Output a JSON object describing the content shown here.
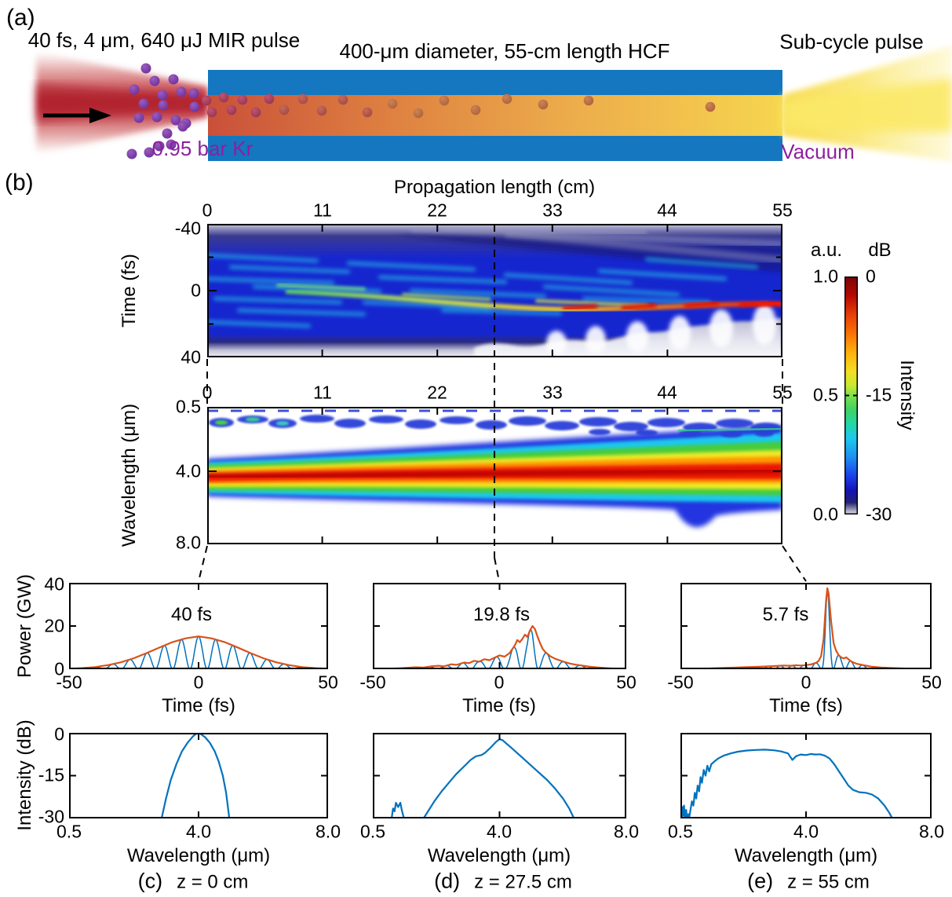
{
  "panel_a": {
    "label": "(a)",
    "pulse_label": "40 fs, 4 μm, 640 μJ MIR pulse",
    "fiber_label": "400-μm diameter, 55-cm length HCF",
    "output_label": "Sub-cycle pulse",
    "gas_label": "0.95 bar Kr",
    "vacuum_label": "Vacuum"
  },
  "panel_b": {
    "label": "(b)",
    "xaxis_title": "Propagation length (cm)",
    "xticks": [
      "0",
      "11",
      "22",
      "33",
      "44",
      "55"
    ],
    "time_map": {
      "ylabel": "Time (fs)",
      "yticks": [
        "-40",
        "0",
        "40"
      ]
    },
    "wavelength_map": {
      "ylabel": "Wavelength (μm)",
      "yticks": [
        "0.5",
        "4.0",
        "8.0"
      ]
    },
    "colorbar": {
      "left_unit": "a.u.",
      "right_unit": "dB",
      "left_ticks": [
        "1.0",
        "0.5",
        "0.0"
      ],
      "right_ticks": [
        "0",
        "-15",
        "-30"
      ],
      "label": "Intensity"
    }
  },
  "bottom": {
    "power_ylabel": "Power (GW)",
    "power_yticks": [
      "40",
      "20",
      "0"
    ],
    "time_xlabel": "Time (fs)",
    "time_xticks": [
      "-50",
      "0",
      "50"
    ],
    "intensity_ylabel": "Intensity (dB)",
    "intensity_yticks": [
      "0",
      "-15",
      "-30"
    ],
    "wavelength_xlabel": "Wavelength (μm)",
    "wavelength_xticks": [
      "0.5",
      "4.0",
      "8.0"
    ],
    "columns": [
      {
        "panel": "(c)",
        "z": "z = 0 cm",
        "duration": "40 fs"
      },
      {
        "panel": "(d)",
        "z": "z = 27.5 cm",
        "duration": "19.8 fs"
      },
      {
        "panel": "(e)",
        "z": "z = 55 cm",
        "duration": "5.7 fs"
      }
    ]
  },
  "colors": {
    "carrier_blue": "#0072BD",
    "envelope_orange": "#D95319",
    "hcf_wall_blue": "#1477c0",
    "gas_text_purple": "#8e1fa0",
    "kr_dot_purple": "#7e3aa4"
  },
  "chart_data": [
    {
      "id": "time_map",
      "type": "heatmap",
      "title": "Propagation length (cm)",
      "x": {
        "label": "Propagation length (cm)",
        "range": [
          0,
          55
        ],
        "ticks": [
          0,
          11,
          22,
          33,
          44,
          55
        ]
      },
      "y": {
        "label": "Time (fs)",
        "range": [
          -40,
          40
        ],
        "ticks": [
          -40,
          0,
          40
        ]
      },
      "colorbar": {
        "au_range": [
          0,
          1
        ],
        "db_range": [
          -30,
          0
        ],
        "label": "Intensity"
      },
      "description": "Temporal intensity vs propagation length: broad multi-cycle structure (FWHM ~40 fs) at z=0 that self-compresses into a single intense ridge drifting from t~0 fs to t~+8 fs, reaching peak (red, 0 dB) near z=55 cm; low-intensity white/gray wings at t<-33 fs and t>+25 fs with oscillatory white lobes at bottom right."
    },
    {
      "id": "wavelength_map",
      "type": "heatmap",
      "x": {
        "label": "Propagation length (cm)",
        "range": [
          0,
          55
        ],
        "ticks": [
          0,
          11,
          22,
          33,
          44,
          55
        ]
      },
      "y": {
        "label": "Wavelength (um)",
        "range": [
          0.5,
          8.0
        ],
        "ticks": [
          0.5,
          4.0,
          8.0
        ]
      },
      "colorbar": {
        "au_range": [
          0,
          1
        ],
        "db_range": [
          -30,
          0
        ],
        "label": "Intensity"
      },
      "description": "Spectral intensity vs propagation length: narrow band centered at 4 um (red core) broadening continuously to ~2.2-6 um by z=55 cm with a low-wavelength dispersive-wave chain near 0.5-1 um and a long-wavelength lobe near z=50 cm; dashed marker at z=27.5 cm."
    },
    {
      "id": "power_z0",
      "type": "line",
      "x_axis": "time",
      "y_axis": "power",
      "xlim": [
        -50,
        50
      ],
      "ylim": [
        0,
        40
      ],
      "annotation": "40 fs",
      "carrier_peak_spacing_fs": 6.65,
      "carrier_peak_time_fs": 0,
      "envelope": [
        [
          -50,
          0.2
        ],
        [
          -45,
          0.5
        ],
        [
          -40,
          1.0
        ],
        [
          -35,
          1.9
        ],
        [
          -30,
          3.2
        ],
        [
          -25,
          5.1
        ],
        [
          -20,
          7.5
        ],
        [
          -15,
          10.1
        ],
        [
          -10,
          12.6
        ],
        [
          -5,
          14.3
        ],
        [
          0,
          15.2
        ],
        [
          5,
          14.3
        ],
        [
          10,
          12.6
        ],
        [
          15,
          10.1
        ],
        [
          20,
          7.5
        ],
        [
          25,
          5.1
        ],
        [
          30,
          3.2
        ],
        [
          35,
          1.9
        ],
        [
          40,
          1.0
        ],
        [
          45,
          0.5
        ],
        [
          50,
          0.2
        ]
      ]
    },
    {
      "id": "power_z27",
      "type": "line",
      "x_axis": "time",
      "y_axis": "power",
      "xlim": [
        -50,
        50
      ],
      "ylim": [
        0,
        40
      ],
      "annotation": "19.8 fs",
      "carrier_peak_spacing_fs": 6.65,
      "carrier_peak_time_fs": 12,
      "envelope": [
        [
          -50,
          0.05
        ],
        [
          -45,
          0.15
        ],
        [
          -40,
          0.4
        ],
        [
          -36,
          0.7
        ],
        [
          -33,
          0.9
        ],
        [
          -30,
          0.8
        ],
        [
          -27,
          1.3
        ],
        [
          -24,
          1.6
        ],
        [
          -22,
          1.3
        ],
        [
          -19,
          2.3
        ],
        [
          -17,
          2.0
        ],
        [
          -14,
          3.1
        ],
        [
          -12,
          2.8
        ],
        [
          -10,
          3.9
        ],
        [
          -8,
          3.5
        ],
        [
          -6,
          4.6
        ],
        [
          -4,
          4.2
        ],
        [
          -2,
          5.3
        ],
        [
          0,
          6.4
        ],
        [
          2,
          5.8
        ],
        [
          4,
          7.5
        ],
        [
          6,
          11
        ],
        [
          7,
          13.5
        ],
        [
          8,
          12.5
        ],
        [
          9,
          14
        ],
        [
          10,
          16
        ],
        [
          11,
          15
        ],
        [
          12,
          18
        ],
        [
          13,
          20
        ],
        [
          14,
          18.5
        ],
        [
          15,
          15
        ],
        [
          16,
          12
        ],
        [
          17,
          9.5
        ],
        [
          18,
          8
        ],
        [
          19,
          7
        ],
        [
          20,
          6
        ],
        [
          22,
          4.8
        ],
        [
          24,
          4
        ],
        [
          26,
          3.2
        ],
        [
          28,
          2.6
        ],
        [
          30,
          2.1
        ],
        [
          33,
          1.6
        ],
        [
          36,
          1.1
        ],
        [
          40,
          0.7
        ],
        [
          45,
          0.3
        ],
        [
          50,
          0.1
        ]
      ]
    },
    {
      "id": "power_z55",
      "type": "line",
      "x_axis": "time",
      "y_axis": "power",
      "xlim": [
        -50,
        50
      ],
      "ylim": [
        0,
        40
      ],
      "annotation": "5.7 fs",
      "carrier_peak_spacing_fs": 4.7,
      "carrier_peak_time_fs": 8.5,
      "envelope": [
        [
          -50,
          0.05
        ],
        [
          -45,
          0.1
        ],
        [
          -40,
          0.3
        ],
        [
          -35,
          0.5
        ],
        [
          -30,
          0.7
        ],
        [
          -25,
          0.9
        ],
        [
          -20,
          1.1
        ],
        [
          -15,
          1.3
        ],
        [
          -12,
          1.5
        ],
        [
          -9,
          1.7
        ],
        [
          -6,
          1.6
        ],
        [
          -4,
          1.8
        ],
        [
          -2,
          1.7
        ],
        [
          0,
          1.9
        ],
        [
          2,
          2.2
        ],
        [
          4,
          3.0
        ],
        [
          5,
          3.8
        ],
        [
          6,
          6
        ],
        [
          7,
          14
        ],
        [
          8,
          32
        ],
        [
          8.5,
          37.5
        ],
        [
          9,
          35
        ],
        [
          10,
          22
        ],
        [
          11,
          12
        ],
        [
          12,
          8.5
        ],
        [
          13,
          6.5
        ],
        [
          14,
          5.5
        ],
        [
          15,
          5
        ],
        [
          16,
          5.5
        ],
        [
          17,
          4.5
        ],
        [
          18,
          3.6
        ],
        [
          20,
          2.6
        ],
        [
          23,
          1.8
        ],
        [
          26,
          1.2
        ],
        [
          30,
          0.8
        ],
        [
          35,
          0.5
        ],
        [
          40,
          0.3
        ],
        [
          45,
          0.15
        ],
        [
          50,
          0.05
        ]
      ]
    },
    {
      "id": "spec_z0",
      "type": "line",
      "x_axis": "wavelength",
      "y_axis": "db",
      "xlim": [
        0.5,
        8.0
      ],
      "ylim": [
        -30,
        0
      ],
      "series": [
        {
          "name": "spectrum",
          "points": [
            [
              3.0,
              -30
            ],
            [
              3.12,
              -23
            ],
            [
              3.25,
              -16.5
            ],
            [
              3.4,
              -11
            ],
            [
              3.55,
              -6.5
            ],
            [
              3.7,
              -3.5
            ],
            [
              3.85,
              -1.2
            ],
            [
              3.95,
              -0.2
            ],
            [
              4.05,
              -0.3
            ],
            [
              4.2,
              -1.5
            ],
            [
              4.35,
              -3.5
            ],
            [
              4.5,
              -6.5
            ],
            [
              4.62,
              -10
            ],
            [
              4.75,
              -15
            ],
            [
              4.85,
              -21
            ],
            [
              4.95,
              -30
            ]
          ]
        }
      ]
    },
    {
      "id": "spec_z27",
      "type": "line",
      "x_axis": "wavelength",
      "y_axis": "db",
      "xlim": [
        0.5,
        8.0
      ],
      "ylim": [
        -30,
        0
      ],
      "series": [
        {
          "name": "harmonic-blob",
          "points": [
            [
              1.02,
              -30
            ],
            [
              1.06,
              -26.5
            ],
            [
              1.1,
              -27.5
            ],
            [
              1.14,
              -24.5
            ],
            [
              1.2,
              -26
            ],
            [
              1.26,
              -24.5
            ],
            [
              1.3,
              -27
            ],
            [
              1.36,
              -30
            ]
          ]
        },
        {
          "name": "spectrum",
          "points": [
            [
              1.9,
              -30
            ],
            [
              2.05,
              -27
            ],
            [
              2.2,
              -24
            ],
            [
              2.4,
              -20.5
            ],
            [
              2.6,
              -17.5
            ],
            [
              2.8,
              -14.5
            ],
            [
              3.0,
              -12
            ],
            [
              3.2,
              -9.5
            ],
            [
              3.35,
              -8.2
            ],
            [
              3.5,
              -7.8
            ],
            [
              3.6,
              -7
            ],
            [
              3.75,
              -5.2
            ],
            [
              3.9,
              -3.2
            ],
            [
              4.0,
              -2.2
            ],
            [
              4.1,
              -2.6
            ],
            [
              4.2,
              -3.6
            ],
            [
              4.35,
              -5
            ],
            [
              4.55,
              -7
            ],
            [
              4.75,
              -9
            ],
            [
              5.0,
              -11.5
            ],
            [
              5.25,
              -14
            ],
            [
              5.5,
              -16.5
            ],
            [
              5.75,
              -19.5
            ],
            [
              6.0,
              -23
            ],
            [
              6.2,
              -26.5
            ],
            [
              6.35,
              -30
            ]
          ]
        }
      ]
    },
    {
      "id": "spec_z55",
      "type": "line",
      "x_axis": "wavelength",
      "y_axis": "db",
      "xlim": [
        0.5,
        8.0
      ],
      "ylim": [
        -30,
        0
      ],
      "series": [
        {
          "name": "spectrum",
          "points": [
            [
              0.54,
              -30
            ],
            [
              0.56,
              -26
            ],
            [
              0.58,
              -29
            ],
            [
              0.6,
              -25.5
            ],
            [
              0.62,
              -30
            ],
            [
              0.66,
              -27
            ],
            [
              0.68,
              -30
            ],
            [
              0.72,
              -28.5
            ],
            [
              0.74,
              -30
            ],
            [
              0.78,
              -27
            ],
            [
              0.82,
              -24
            ],
            [
              0.86,
              -25.5
            ],
            [
              0.9,
              -21
            ],
            [
              0.94,
              -23
            ],
            [
              0.98,
              -18.5
            ],
            [
              1.02,
              -20.5
            ],
            [
              1.06,
              -15.5
            ],
            [
              1.1,
              -17.5
            ],
            [
              1.15,
              -13
            ],
            [
              1.2,
              -15
            ],
            [
              1.25,
              -11.5
            ],
            [
              1.3,
              -13.5
            ],
            [
              1.36,
              -11
            ],
            [
              1.45,
              -10
            ],
            [
              1.55,
              -9
            ],
            [
              1.7,
              -8
            ],
            [
              1.9,
              -7.2
            ],
            [
              2.1,
              -6.6
            ],
            [
              2.35,
              -6.2
            ],
            [
              2.6,
              -6.0
            ],
            [
              2.85,
              -5.9
            ],
            [
              3.1,
              -6.1
            ],
            [
              3.3,
              -6.5
            ],
            [
              3.5,
              -7.2
            ],
            [
              3.62,
              -9.5
            ],
            [
              3.72,
              -8.2
            ],
            [
              3.85,
              -7.6
            ],
            [
              4.0,
              -7.8
            ],
            [
              4.15,
              -7.4
            ],
            [
              4.3,
              -7.6
            ],
            [
              4.45,
              -7.5
            ],
            [
              4.6,
              -8.0
            ],
            [
              4.75,
              -9.0
            ],
            [
              4.9,
              -11
            ],
            [
              5.05,
              -13.5
            ],
            [
              5.2,
              -16
            ],
            [
              5.35,
              -18.5
            ],
            [
              5.5,
              -20
            ],
            [
              5.7,
              -20.8
            ],
            [
              5.9,
              -21
            ],
            [
              6.1,
              -21.6
            ],
            [
              6.3,
              -23
            ],
            [
              6.5,
              -25.5
            ],
            [
              6.65,
              -28
            ],
            [
              6.75,
              -30
            ]
          ]
        }
      ]
    }
  ]
}
